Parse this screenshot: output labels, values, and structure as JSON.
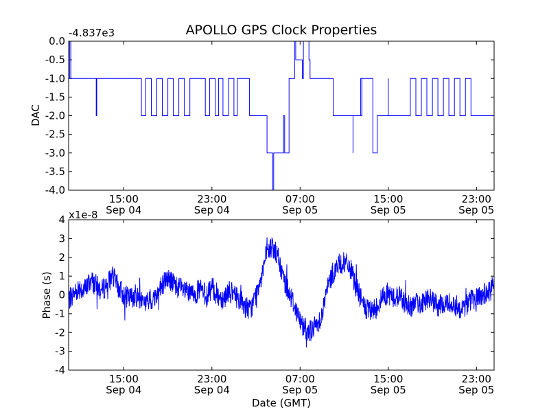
{
  "figure": {
    "title": "APOLLO GPS Clock Properties",
    "colors": {
      "series": "#0000ff",
      "frame": "#000000",
      "background": "#ffffff"
    }
  },
  "chart_data": [
    {
      "type": "line",
      "title": "APOLLO GPS Clock Properties",
      "ylabel": "DAC",
      "xlabel": "",
      "offset_label": "-4.837e3",
      "ylim": [
        -4.0,
        0.0
      ],
      "xlim": [
        "Sep 04 10:00",
        "Sep 06 00:30"
      ],
      "grid": false,
      "yticks": [
        "0.0",
        "-0.5",
        "-1.0",
        "-1.5",
        "-2.0",
        "-2.5",
        "-3.0",
        "-3.5",
        "-4.0"
      ],
      "ytick_values": [
        0,
        -0.5,
        -1,
        -1.5,
        -2,
        -2.5,
        -3,
        -3.5,
        -4
      ],
      "xticks": [
        {
          "x_hours": 15,
          "time": "15:00",
          "date": "Sep 04"
        },
        {
          "x_hours": 23,
          "time": "23:00",
          "date": "Sep 04"
        },
        {
          "x_hours": 31,
          "time": "07:00",
          "date": "Sep 05"
        },
        {
          "x_hours": 39,
          "time": "15:00",
          "date": "Sep 05"
        },
        {
          "x_hours": 47,
          "time": "23:00",
          "date": "Sep 05"
        }
      ],
      "series": [
        {
          "color": "#0000ff",
          "x_hours": [
            10.0,
            10.1,
            10.1,
            10.2,
            10.2,
            10.4,
            10.4,
            12.5,
            12.5,
            12.55,
            12.55,
            16.0,
            16.6,
            17.0,
            17.5,
            18.0,
            18.5,
            19.0,
            19.5,
            20.0,
            20.5,
            21.0,
            21.5,
            22.0,
            22.4,
            22.4,
            22.8,
            23.3,
            23.6,
            24.0,
            24.5,
            25.0,
            25.3,
            26.0,
            26.4,
            26.5,
            27.5,
            28.0,
            28.3,
            28.5,
            28.6,
            28.7,
            29.5,
            29.6,
            30.0,
            30.1,
            30.5,
            30.6,
            31.2,
            31.3,
            31.8,
            31.9,
            34.0,
            34.0,
            35.8,
            35.8,
            36.5,
            36.6,
            36.5,
            37.5,
            37.6,
            38.0,
            38.0,
            39.0,
            39.0,
            39.5,
            40.0,
            41.0,
            41.5,
            42.0,
            42.5,
            43.0,
            43.5,
            44.0,
            44.5,
            45.0,
            45.5,
            46.0,
            46.5,
            47.0,
            48.0,
            48.6
          ],
          "values": [
            -1.0,
            -1.0,
            0.0,
            0.0,
            -1.0,
            -1.0,
            -1.0,
            -1.0,
            -2.0,
            -2.0,
            -1.0,
            -1.0,
            -2.0,
            -1.0,
            -2.0,
            -1.0,
            -2.0,
            -1.0,
            -2.0,
            -1.0,
            -2.0,
            -1.0,
            -1.0,
            -1.0,
            -1.0,
            -2.0,
            -1.0,
            -2.0,
            -1.0,
            -2.0,
            -1.0,
            -2.0,
            -1.0,
            -1.0,
            -2.0,
            -2.0,
            -2.0,
            -3.0,
            -3.0,
            -4.0,
            -3.0,
            -3.0,
            -2.0,
            -3.0,
            -1.0,
            -1.0,
            0.0,
            -0.5,
            -1.0,
            0.0,
            -0.5,
            -1.0,
            -2.0,
            -2.0,
            -3.0,
            -2.0,
            -1.0,
            -2.0,
            -1.0,
            -1.0,
            -3.0,
            -2.0,
            -2.0,
            -1.0,
            -2.0,
            -2.0,
            -2.0,
            -1.0,
            -2.0,
            -1.0,
            -2.0,
            -1.0,
            -2.0,
            -1.0,
            -2.0,
            -1.0,
            -2.0,
            -1.0,
            -2.0,
            -2.0,
            -2.0,
            -2.0
          ]
        }
      ]
    },
    {
      "type": "line",
      "title": "",
      "ylabel": "Phase (s)",
      "xlabel": "Date (GMT)",
      "offset_label": "x1e-8",
      "ylim": [
        -4,
        4
      ],
      "xlim": [
        "Sep 04 10:00",
        "Sep 06 00:30"
      ],
      "grid": false,
      "yticks": [
        "4",
        "3",
        "2",
        "1",
        "0",
        "-1",
        "-2",
        "-3",
        "-4"
      ],
      "ytick_values": [
        4,
        3,
        2,
        1,
        0,
        -1,
        -2,
        -3,
        -4
      ],
      "xticks": [
        {
          "x_hours": 15,
          "time": "15:00",
          "date": "Sep 04"
        },
        {
          "x_hours": 23,
          "time": "23:00",
          "date": "Sep 04"
        },
        {
          "x_hours": 31,
          "time": "07:00",
          "date": "Sep 05"
        },
        {
          "x_hours": 39,
          "time": "15:00",
          "date": "Sep 05"
        },
        {
          "x_hours": 47,
          "time": "23:00",
          "date": "Sep 05"
        }
      ],
      "series": [
        {
          "color": "#0000ff",
          "x_hours": [
            10.0,
            10.5,
            11.0,
            11.5,
            12.0,
            12.5,
            13.0,
            13.5,
            14.0,
            14.5,
            15.0,
            15.5,
            16.0,
            16.5,
            17.0,
            17.5,
            18.0,
            18.5,
            19.0,
            19.5,
            20.0,
            20.5,
            21.0,
            21.5,
            22.0,
            22.5,
            23.0,
            23.5,
            24.0,
            24.5,
            25.0,
            25.5,
            26.0,
            26.5,
            27.0,
            27.5,
            28.0,
            28.5,
            29.0,
            29.5,
            30.0,
            30.5,
            31.0,
            31.5,
            32.0,
            32.5,
            33.0,
            33.5,
            34.0,
            34.5,
            35.0,
            35.5,
            36.0,
            36.5,
            37.0,
            37.5,
            38.0,
            38.5,
            39.0,
            39.5,
            40.0,
            40.5,
            41.0,
            41.5,
            42.0,
            42.5,
            43.0,
            43.5,
            44.0,
            44.5,
            45.0,
            45.5,
            46.0,
            46.5,
            47.0,
            47.5,
            48.0,
            48.6
          ],
          "values": [
            -0.3,
            0.1,
            0.4,
            0.3,
            0.8,
            0.5,
            0.2,
            0.6,
            1.0,
            0.4,
            0.0,
            -0.2,
            0.0,
            -0.2,
            -0.4,
            -0.3,
            0.0,
            0.6,
            0.9,
            0.6,
            0.4,
            0.2,
            0.0,
            0.1,
            0.3,
            -0.1,
            0.4,
            0.0,
            -0.2,
            0.2,
            0.0,
            -0.2,
            -0.6,
            -0.8,
            0.0,
            1.2,
            2.2,
            2.6,
            2.0,
            0.8,
            0.2,
            -0.6,
            -1.4,
            -1.8,
            -1.9,
            -1.6,
            -1.0,
            0.4,
            1.2,
            1.6,
            1.7,
            1.5,
            0.6,
            -0.2,
            -0.8,
            -0.9,
            -0.6,
            -0.1,
            0.1,
            -0.2,
            0.0,
            -0.4,
            -0.6,
            -0.5,
            -0.4,
            -0.2,
            -0.3,
            -0.6,
            -0.5,
            -0.4,
            -0.5,
            -0.7,
            -0.6,
            -0.3,
            -0.2,
            0.0,
            0.1,
            0.3
          ],
          "noise_amplitude": 0.6
        }
      ]
    }
  ]
}
